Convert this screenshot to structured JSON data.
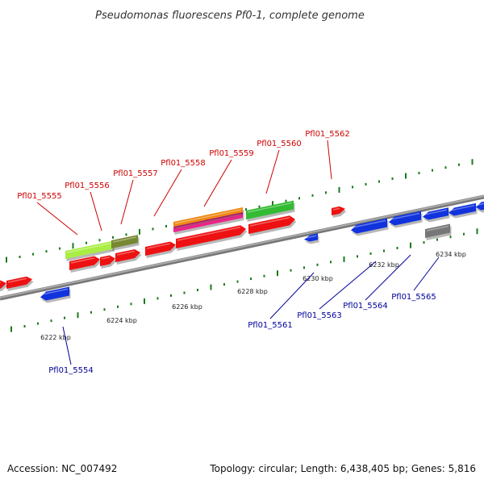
{
  "title": "Pseudomonas fluorescens Pf0-1, complete genome",
  "footer": {
    "accession": "Accession: NC_007492",
    "summary": "Topology: circular; Length: 6,438,405 bp; Genes: 5,816"
  },
  "colors": {
    "forward_label": "#cc0000",
    "reverse_label": "#000099",
    "tick": "#1a7a1a",
    "backbone": "#888888"
  },
  "axis_labels": [
    "6222 kbp",
    "6224 kbp",
    "6226 kbp",
    "6228 kbp",
    "6230 kbp",
    "6232 kbp",
    "6234 kbp"
  ],
  "forward_genes": [
    "Pfl01_5555",
    "Pfl01_5556",
    "Pfl01_5557",
    "Pfl01_5558",
    "Pfl01_5559",
    "Pfl01_5560",
    "Pfl01_5562"
  ],
  "reverse_genes": [
    "Pfl01_5554",
    "Pfl01_5561",
    "Pfl01_5563",
    "Pfl01_5564",
    "Pfl01_5565"
  ],
  "feature_colors": {
    "cds": "#ee1111",
    "cds_reverse": "#1133dd",
    "yellowgreen": "#aaee44",
    "olive": "#778833",
    "orange": "#ee8811",
    "magenta": "#ee2288",
    "green": "#33bb33",
    "gray": "#777777"
  }
}
